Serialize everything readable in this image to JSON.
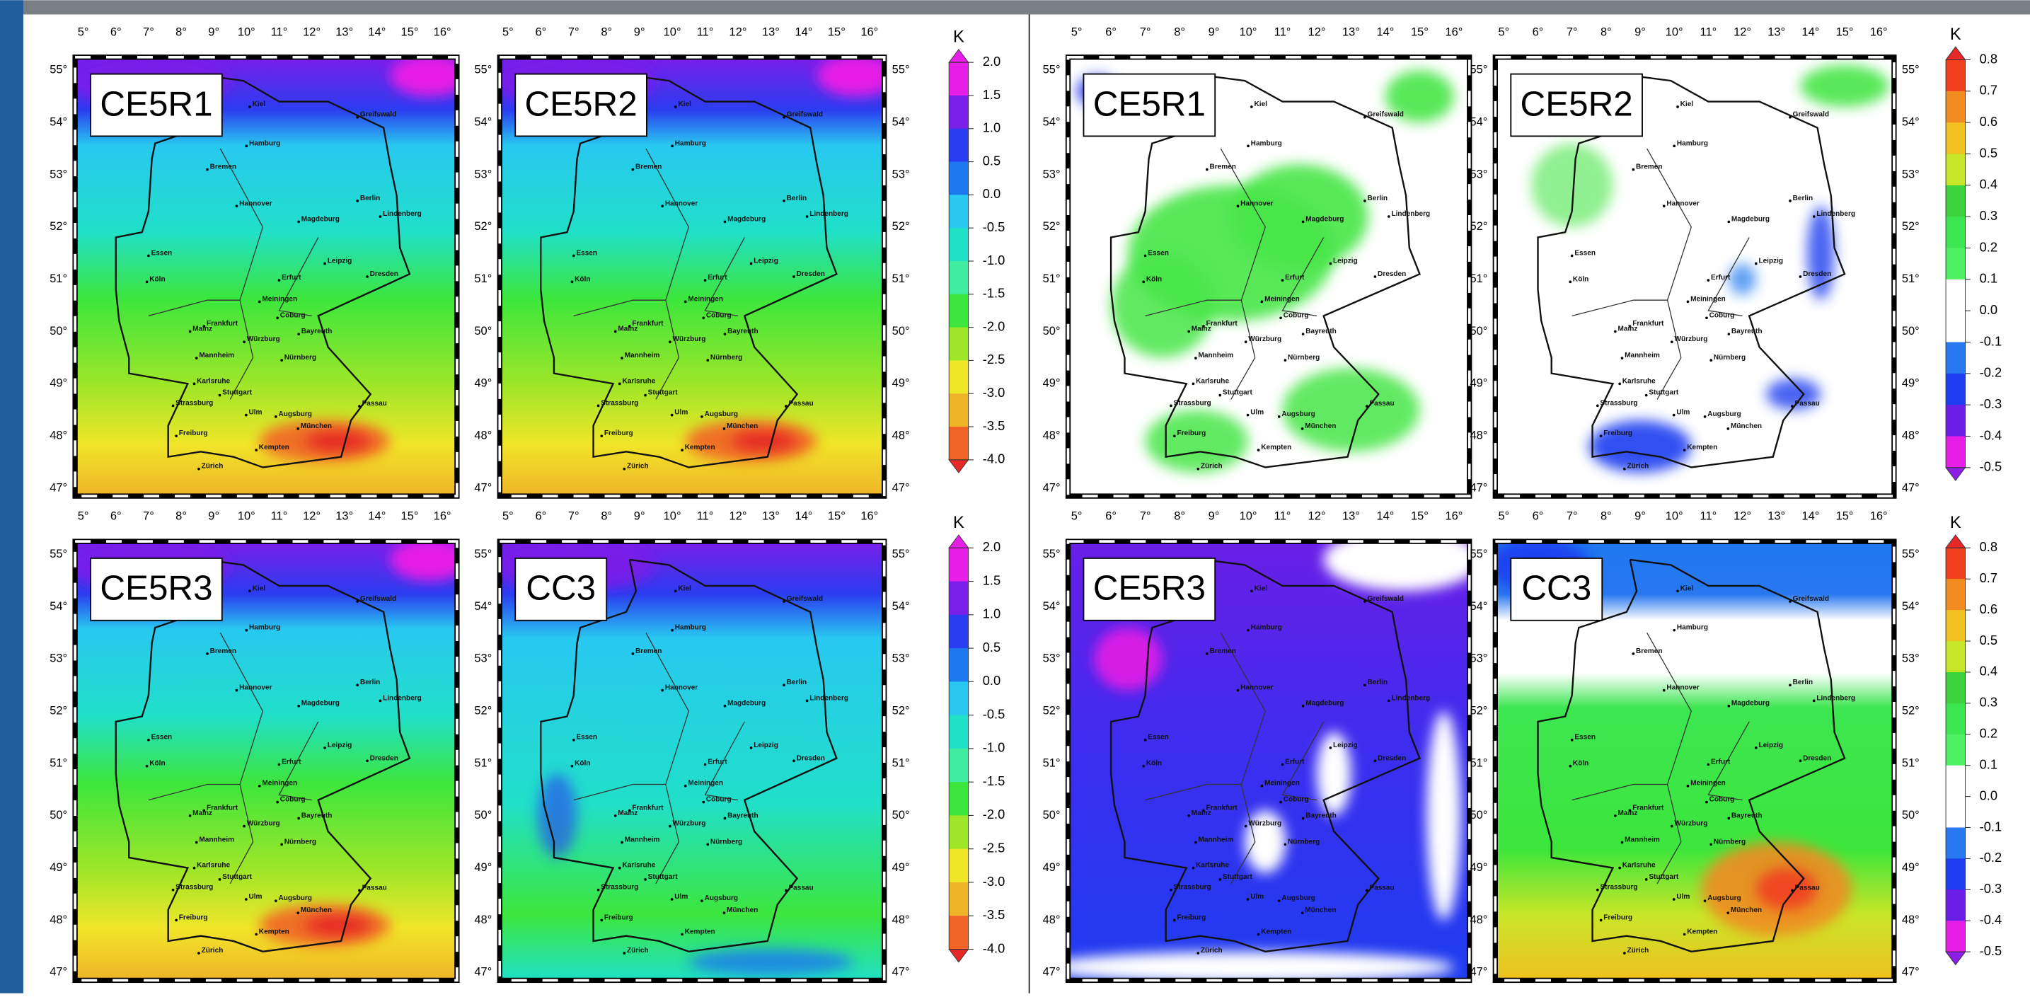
{
  "panels": [
    {
      "label": "CE5R1"
    },
    {
      "label": "CE5R2"
    },
    {
      "label": "CE5R3"
    },
    {
      "label": "CC3"
    },
    {
      "label": "CE5R1"
    },
    {
      "label": "CE5R2"
    },
    {
      "label": "CE5R3"
    },
    {
      "label": "CC3"
    }
  ],
  "lon_ticks": [
    "5°",
    "6°",
    "7°",
    "8°",
    "9°",
    "10°",
    "11°",
    "12°",
    "13°",
    "14°",
    "15°",
    "16°"
  ],
  "lat_ticks": [
    "55°",
    "54°",
    "53°",
    "52°",
    "51°",
    "50°",
    "49°",
    "48°",
    "47°"
  ],
  "colorbars": [
    {
      "unit": "K",
      "ticks": [
        "2.0",
        "1.5",
        "1.0",
        "0.5",
        "0.0",
        "-0.5",
        "-1.0",
        "-1.5",
        "-2.0",
        "-2.5",
        "-3.0",
        "-3.5",
        "-4.0"
      ]
    },
    {
      "unit": "K",
      "ticks": [
        "2.0",
        "1.5",
        "1.0",
        "0.5",
        "0.0",
        "-0.5",
        "-1.0",
        "-1.5",
        "-2.0",
        "-2.5",
        "-3.0",
        "-3.5",
        "-4.0"
      ]
    },
    {
      "unit": "K",
      "ticks": [
        "0.8",
        "0.7",
        "0.6",
        "0.5",
        "0.4",
        "0.3",
        "0.2",
        "0.1",
        "0.0",
        "-0.1",
        "-0.2",
        "-0.3",
        "-0.4",
        "-0.5"
      ]
    },
    {
      "unit": "K",
      "ticks": [
        "0.8",
        "0.7",
        "0.6",
        "0.5",
        "0.4",
        "0.3",
        "0.2",
        "0.1",
        "0.0",
        "-0.1",
        "-0.2",
        "-0.3",
        "-0.4",
        "-0.5"
      ]
    }
  ],
  "cities": [
    "Kiel",
    "Greifswald",
    "Hamburg",
    "Bremen",
    "Hannover",
    "Berlin",
    "Lindenberg",
    "Magdeburg",
    "Essen",
    "Köln",
    "Leipzig",
    "Dresden",
    "Erfurt",
    "Meiningen",
    "Coburg",
    "Bayreuth",
    "Frankfurt",
    "Mainz",
    "Mannheim",
    "Würzburg",
    "Nürnberg",
    "Karlsruhe",
    "Stuttgart",
    "Strassburg",
    "Ulm",
    "Augsburg",
    "Passau",
    "Freiburg",
    "München",
    "Kempten",
    "Zürich"
  ]
}
